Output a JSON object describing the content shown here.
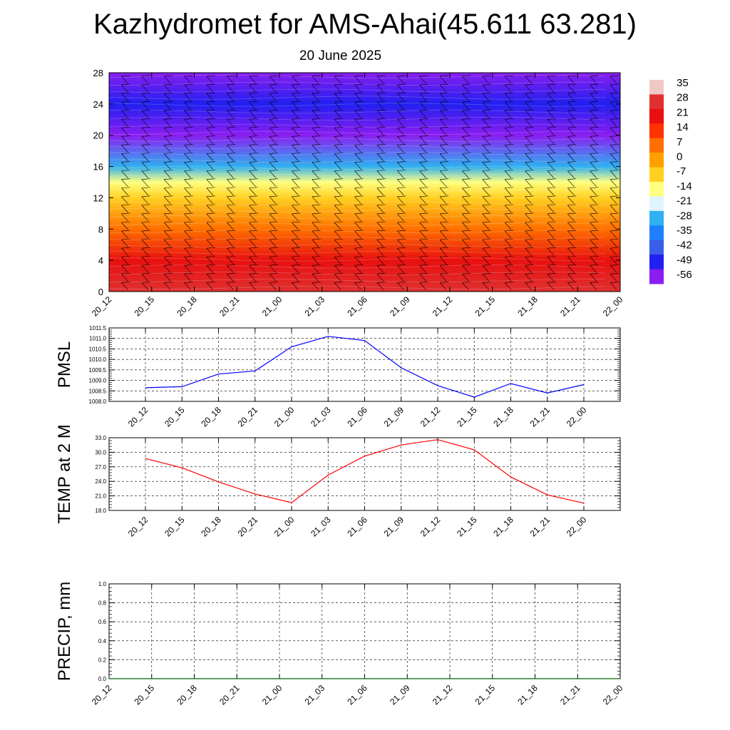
{
  "title": "Kazhydromet for AMS-Ahai(45.611 63.281)",
  "subtitle": "20 June 2025",
  "colors": {
    "pmsl_line": "#0000ff",
    "temp_line": "#ff0000",
    "precip_line": "#006400",
    "grid": "#000000"
  },
  "chart_data": [
    {
      "type": "heatmap",
      "title": "",
      "x_categories": [
        "20_12",
        "20_15",
        "20_18",
        "20_21",
        "21_00",
        "21_03",
        "21_06",
        "21_09",
        "21_12",
        "21_15",
        "21_18",
        "21_21",
        "22_00"
      ],
      "y_ticks": [
        0,
        4,
        8,
        12,
        16,
        20,
        24,
        28
      ],
      "ylim": [
        0,
        28
      ],
      "colorbar_labels": [
        "35",
        "28",
        "21",
        "14",
        "7",
        "0",
        "-7",
        "-14",
        "-21",
        "-28",
        "-35",
        "-42",
        "-49",
        "-56"
      ],
      "colorbar_colors": [
        "#f0c8c8",
        "#e03030",
        "#e81010",
        "#ff3300",
        "#ff7000",
        "#ffa000",
        "#ffd020",
        "#ffff80",
        "#e0f4ff",
        "#30b0f0",
        "#1e80ff",
        "#3a5ee8",
        "#2020f0",
        "#8a1ef0"
      ],
      "level_temperatures": [
        {
          "height": 0,
          "value": 28
        },
        {
          "height": 4,
          "value": 22
        },
        {
          "height": 8,
          "value": 10
        },
        {
          "height": 12,
          "value": -5
        },
        {
          "height": 14,
          "value": -15
        },
        {
          "height": 16,
          "value": -28
        },
        {
          "height": 20,
          "value": -56
        },
        {
          "height": 24,
          "value": -50
        },
        {
          "height": 28,
          "value": -60
        }
      ],
      "wind_barbs": "shown"
    },
    {
      "type": "line",
      "ylabel": "PMSL",
      "categories": [
        "20_12",
        "20_15",
        "20_18",
        "20_21",
        "21_00",
        "21_03",
        "21_06",
        "21_09",
        "21_12",
        "21_15",
        "21_18",
        "21_21",
        "22_00"
      ],
      "series": [
        {
          "values": [
            1008.65,
            1008.7,
            1009.3,
            1009.45,
            1010.6,
            1011.1,
            1010.9,
            1009.6,
            1008.75,
            1008.2,
            1008.85,
            1008.4,
            1008.8
          ]
        }
      ],
      "ylim": [
        1008.0,
        1011.5
      ],
      "yticks": [
        "1008.0",
        "1008.5",
        "1009.0",
        "1009.5",
        "1010.0",
        "1010.5",
        "1011.0",
        "1011.5"
      ],
      "grid": true
    },
    {
      "type": "line",
      "ylabel": "TEMP at 2 M",
      "categories": [
        "20_12",
        "20_15",
        "20_18",
        "20_21",
        "21_00",
        "21_03",
        "21_06",
        "21_09",
        "21_12",
        "21_15",
        "21_18",
        "21_21",
        "22_00"
      ],
      "series": [
        {
          "values": [
            28.7,
            26.8,
            23.9,
            21.4,
            19.6,
            25.3,
            29.2,
            31.5,
            32.6,
            30.5,
            24.9,
            21.2,
            19.5
          ]
        }
      ],
      "ylim": [
        18.0,
        33.0
      ],
      "yticks": [
        "18.0",
        "21.0",
        "24.0",
        "27.0",
        "30.0",
        "33.0"
      ],
      "grid": true
    },
    {
      "type": "line",
      "ylabel": "PRECIP, mm",
      "categories": [
        "20_12",
        "20_15",
        "20_18",
        "20_21",
        "21_00",
        "21_03",
        "21_06",
        "21_09",
        "21_12",
        "21_15",
        "21_18",
        "21_21",
        "22_00"
      ],
      "series": [
        {
          "values": [
            0,
            0,
            0,
            0,
            0,
            0,
            0,
            0,
            0,
            0,
            0,
            0,
            0
          ]
        }
      ],
      "ylim": [
        0.0,
        1.0
      ],
      "yticks": [
        "0.0",
        "0.2",
        "0.4",
        "0.6",
        "0.8",
        "1.0"
      ],
      "grid": true
    }
  ]
}
